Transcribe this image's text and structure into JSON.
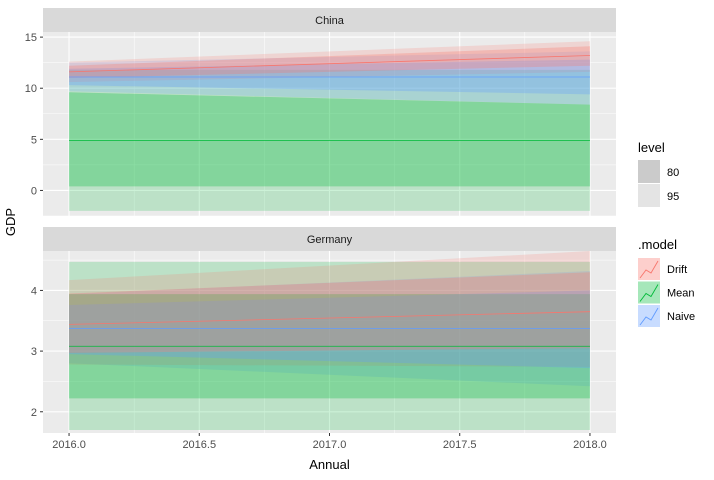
{
  "chart_data": {
    "type": "area",
    "x_label": "Annual",
    "y_label": "GDP",
    "x_ticks": [
      2016.0,
      2016.5,
      2017.0,
      2017.5,
      2018.0
    ],
    "x_tick_labels": [
      "2016.0",
      "2016.5",
      "2017.0",
      "2017.5",
      "2018.0"
    ],
    "xlim": [
      2015.9,
      2018.1
    ],
    "grid": true,
    "legend_placement": "right",
    "facets": [
      {
        "name": "China",
        "ylim": [
          -2.5,
          15.5
        ],
        "y_ticks": [
          0,
          5,
          10,
          15
        ],
        "y_tick_labels": [
          "0",
          "5",
          "10",
          "15"
        ],
        "series": [
          {
            "name": "Mean",
            "x": [
              2016,
              2018
            ],
            "mean": [
              4.9,
              4.9
            ],
            "lo80": [
              0.4,
              0.4
            ],
            "hi80": [
              9.6,
              8.4
            ],
            "lo95": [
              -2.0,
              -2.0
            ],
            "hi95": [
              11.8,
              11.8
            ]
          },
          {
            "name": "Naive",
            "x": [
              2016,
              2018
            ],
            "mean": [
              11.1,
              11.1
            ],
            "lo80": [
              10.3,
              9.4
            ],
            "hi80": [
              11.9,
              12.8
            ],
            "lo95": [
              9.7,
              8.4
            ],
            "hi95": [
              12.5,
              13.6
            ]
          },
          {
            "name": "Drift",
            "x": [
              2016,
              2018
            ],
            "mean": [
              11.6,
              13.2
            ],
            "lo80": [
              11.0,
              12.2
            ],
            "hi80": [
              12.2,
              14.1
            ],
            "lo95": [
              10.6,
              11.6
            ],
            "hi95": [
              12.6,
              14.6
            ]
          }
        ]
      },
      {
        "name": "Germany",
        "ylim": [
          1.65,
          4.65
        ],
        "y_ticks": [
          2,
          3,
          4
        ],
        "y_tick_labels": [
          "2",
          "3",
          "4"
        ],
        "series": [
          {
            "name": "Mean",
            "x": [
              2016,
              2018
            ],
            "mean": [
              3.08,
              3.08
            ],
            "lo80": [
              2.22,
              2.22
            ],
            "hi80": [
              3.94,
              3.94
            ],
            "lo95": [
              1.7,
              1.7
            ],
            "hi95": [
              4.47,
              4.47
            ]
          },
          {
            "name": "Naive",
            "x": [
              2016,
              2018
            ],
            "mean": [
              3.37,
              3.37
            ],
            "lo80": [
              2.95,
              2.72
            ],
            "hi80": [
              3.76,
              4.0
            ],
            "lo95": [
              2.8,
              2.42
            ],
            "hi95": [
              3.94,
              4.32
            ]
          },
          {
            "name": "Drift",
            "x": [
              2016,
              2018
            ],
            "mean": [
              3.44,
              3.65
            ],
            "lo80": [
              2.97,
              3.05
            ],
            "hi80": [
              3.95,
              4.3
            ],
            "lo95": [
              2.78,
              2.74
            ],
            "hi95": [
              4.17,
              4.65
            ]
          }
        ]
      }
    ],
    "legend": {
      "level": {
        "title": "level",
        "items": [
          "80",
          "95"
        ]
      },
      "model": {
        "title": ".model",
        "items": [
          "Drift",
          "Mean",
          "Naive"
        ]
      }
    },
    "colors": {
      "Drift": "#F8766D",
      "Mean": "#00BA38",
      "Naive": "#619CFF",
      "panel_bg": "#EBEBEB",
      "strip_bg": "#D9D9D9",
      "level80": "#CBCBCB",
      "level95": "#E4E4E4"
    }
  }
}
